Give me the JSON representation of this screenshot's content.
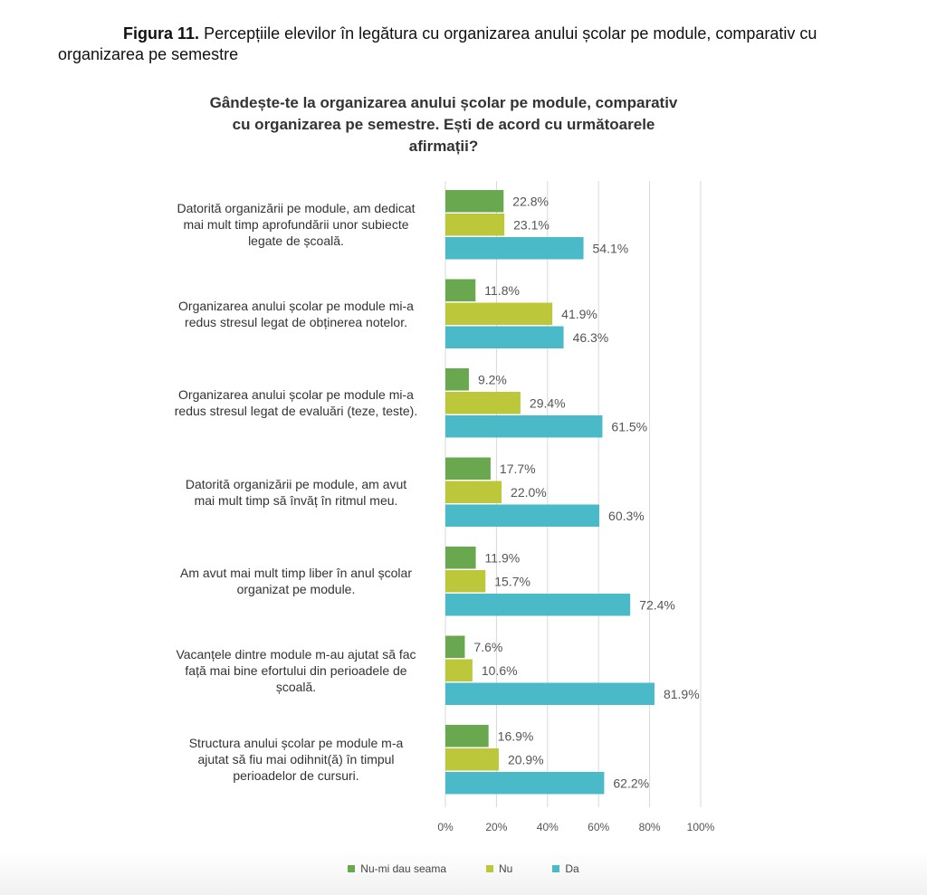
{
  "figure": {
    "label": "Figura 11.",
    "caption": "Percepțiile elevilor în legătura cu organizarea anului școlar pe module, comparativ cu organizarea pe semestre"
  },
  "colors": {
    "nu_mi_dau_seama": "#6aa84f",
    "nu": "#bcc83a",
    "da": "#4ab9c8",
    "grid": "#d9d9d9",
    "text": "#444444"
  },
  "chart_data": {
    "type": "bar",
    "orientation": "horizontal",
    "title": "Gândește-te la organizarea anului școlar pe module, comparativ cu organizarea pe semestre. Ești de acord cu următoarele afirmații?",
    "xlim": [
      0,
      100
    ],
    "ticks": [
      "0%",
      "20%",
      "40%",
      "60%",
      "80%",
      "100%"
    ],
    "grid": true,
    "legend_position": "bottom",
    "categories": [
      [
        "Datorită organizării pe module, am dedicat",
        "mai mult timp aprofundării unor subiecte",
        "legate de școală."
      ],
      [
        "Organizarea anului școlar pe module mi-a",
        "redus stresul legat de obținerea notelor."
      ],
      [
        "Organizarea anului școlar pe module mi-a",
        "redus stresul legat de evaluări (teze, teste)."
      ],
      [
        "Datorită organizării pe module, am avut",
        "mai mult timp să învăț în ritmul meu."
      ],
      [
        "Am avut mai mult timp liber în anul școlar",
        "organizat pe module."
      ],
      [
        "Vacanțele dintre module m-au ajutat să fac",
        "față mai bine efortului din perioadele de",
        "școală."
      ],
      [
        "Structura anului școlar pe module m-a",
        "ajutat să fiu mai odihnit(ă) în timpul",
        "perioadelor de cursuri."
      ]
    ],
    "series": [
      {
        "name": "Nu-mi dau seama",
        "values": [
          22.8,
          11.8,
          9.2,
          17.7,
          11.9,
          7.6,
          16.9
        ]
      },
      {
        "name": "Nu",
        "values": [
          23.1,
          41.9,
          29.4,
          22.0,
          15.7,
          10.6,
          20.9
        ]
      },
      {
        "name": "Da",
        "values": [
          54.1,
          46.3,
          61.5,
          60.3,
          72.4,
          81.9,
          62.2
        ]
      }
    ]
  }
}
